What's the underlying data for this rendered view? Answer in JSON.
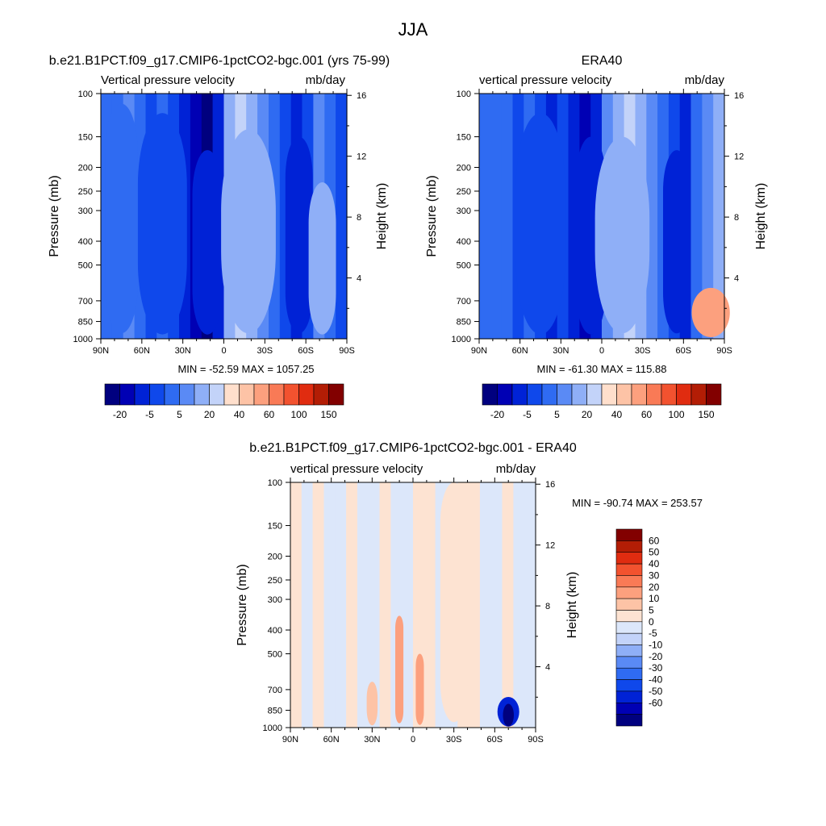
{
  "page": {
    "title": "JJA"
  },
  "colors": {
    "model_levels": [
      "#00007f",
      "#0000b4",
      "#0022d6",
      "#0f48eb",
      "#2f6bf2",
      "#5a8af5",
      "#8faff7",
      "#c3d3f9",
      "#ffdfcc",
      "#fdc3a6",
      "#fca07e",
      "#f97a56",
      "#f2522f",
      "#e02c10",
      "#b31d05",
      "#820000"
    ],
    "diff_levels": [
      "#00007f",
      "#0000b4",
      "#0022d6",
      "#0f48eb",
      "#2f6bf2",
      "#5a8af5",
      "#8faff7",
      "#c3d3f9",
      "#dce7fa",
      "#fde3d2",
      "#fdc3a6",
      "#fca07e",
      "#f97a56",
      "#f2522f",
      "#e02c10",
      "#b31d05",
      "#820000"
    ]
  },
  "chart_data": [
    {
      "type": "heatmap",
      "title": "b.e21.B1PCT.f09_g17.CMIP6-1pctCO2-bgc.001 (yrs 75-99)",
      "subtitle_left": "Vertical pressure velocity",
      "subtitle_right": "mb/day",
      "ylabel": "Pressure (mb)",
      "ylabel_right": "Height (km)",
      "x_ticks": [
        "90N",
        "60N",
        "30N",
        "0",
        "30S",
        "60S",
        "90S"
      ],
      "x_tick_values": [
        90,
        60,
        30,
        0,
        -30,
        -60,
        -90
      ],
      "y_ticks": [
        "100",
        "150",
        "200",
        "250",
        "300",
        "400",
        "500",
        "700",
        "850",
        "1000"
      ],
      "y_tick_values": [
        100,
        150,
        200,
        250,
        300,
        400,
        500,
        700,
        850,
        1000
      ],
      "y_right_ticks": [
        "16",
        "12",
        "8",
        "4"
      ],
      "y_right_values": [
        16,
        12,
        8,
        4
      ],
      "ylim": [
        1000,
        100
      ],
      "xlim": [
        90,
        -90
      ],
      "stats": "MIN = -52.59  MAX = 1057.25",
      "colorbar_labels": [
        "-20",
        "-5",
        "5",
        "20",
        "40",
        "60",
        "100",
        "150"
      ],
      "features": [
        {
          "lat": 12,
          "p": 600,
          "level": 0,
          "lat_w": 6,
          "p_top": 210
        },
        {
          "lat": 12,
          "p": 600,
          "level": 2,
          "lat_w": 11,
          "p_top": 170
        },
        {
          "lat": -18,
          "p": 500,
          "level": 7,
          "lat_w": 12,
          "p_top": 200
        },
        {
          "lat": -18,
          "p": 500,
          "level": 6,
          "lat_w": 20,
          "p_top": 140
        },
        {
          "lat": -55,
          "p": 500,
          "level": 2,
          "lat_w": 10,
          "p_top": 150
        },
        {
          "lat": -72,
          "p": 600,
          "level": 6,
          "lat_w": 10,
          "p_top": 230
        },
        {
          "lat": 45,
          "p": 600,
          "level": 3,
          "lat_w": 18,
          "p_top": 120
        },
        {
          "lat": 75,
          "p": 500,
          "level": 4,
          "lat_w": 12,
          "p_top": 110
        }
      ]
    },
    {
      "type": "heatmap",
      "title": "ERA40",
      "subtitle_left": "vertical pressure velocity",
      "subtitle_right": "mb/day",
      "ylabel": "Pressure (mb)",
      "ylabel_right": "Height (km)",
      "x_ticks": [
        "90N",
        "60N",
        "30N",
        "0",
        "30S",
        "60S",
        "90S"
      ],
      "x_tick_values": [
        90,
        60,
        30,
        0,
        -30,
        -60,
        -90
      ],
      "y_ticks": [
        "100",
        "150",
        "200",
        "250",
        "300",
        "400",
        "500",
        "700",
        "850",
        "1000"
      ],
      "y_tick_values": [
        100,
        150,
        200,
        250,
        300,
        400,
        500,
        700,
        850,
        1000
      ],
      "y_right_ticks": [
        "16",
        "12",
        "8",
        "4"
      ],
      "y_right_values": [
        16,
        12,
        8,
        4
      ],
      "ylim": [
        1000,
        100
      ],
      "xlim": [
        90,
        -90
      ],
      "stats": "MIN = -61.30  MAX = 115.88",
      "colorbar_labels": [
        "-20",
        "-5",
        "5",
        "20",
        "40",
        "60",
        "100",
        "150"
      ],
      "features": [
        {
          "lat": 8,
          "p": 600,
          "level": 0,
          "lat_w": 6,
          "p_top": 200
        },
        {
          "lat": 8,
          "p": 600,
          "level": 2,
          "lat_w": 11,
          "p_top": 150
        },
        {
          "lat": -15,
          "p": 500,
          "level": 7,
          "lat_w": 12,
          "p_top": 220
        },
        {
          "lat": -15,
          "p": 500,
          "level": 6,
          "lat_w": 20,
          "p_top": 150
        },
        {
          "lat": -55,
          "p": 500,
          "level": 2,
          "lat_w": 10,
          "p_top": 170
        },
        {
          "lat": -80,
          "p": 850,
          "level": 12,
          "lat_w": 10,
          "p_top": 680
        },
        {
          "lat": -80,
          "p": 850,
          "level": 10,
          "lat_w": 14,
          "p_top": 620
        },
        {
          "lat": 45,
          "p": 600,
          "level": 3,
          "lat_w": 18,
          "p_top": 120
        }
      ]
    },
    {
      "type": "heatmap",
      "title": "b.e21.B1PCT.f09_g17.CMIP6-1pctCO2-bgc.001 - ERA40",
      "subtitle_left": "vertical pressure velocity",
      "subtitle_right": "mb/day",
      "ylabel": "Pressure (mb)",
      "ylabel_right": "Height (km)",
      "x_ticks": [
        "90N",
        "60N",
        "30N",
        "0",
        "30S",
        "60S",
        "90S"
      ],
      "x_tick_values": [
        90,
        60,
        30,
        0,
        -30,
        -60,
        -90
      ],
      "y_ticks": [
        "100",
        "150",
        "200",
        "250",
        "300",
        "400",
        "500",
        "700",
        "850",
        "1000"
      ],
      "y_tick_values": [
        100,
        150,
        200,
        250,
        300,
        400,
        500,
        700,
        850,
        1000
      ],
      "y_right_ticks": [
        "16",
        "12",
        "8",
        "4"
      ],
      "y_right_values": [
        16,
        12,
        8,
        4
      ],
      "ylim": [
        1000,
        100
      ],
      "xlim": [
        90,
        -90
      ],
      "stats": "MIN = -90.74  MAX = 253.57",
      "colorbar_labels": [
        "60",
        "50",
        "40",
        "30",
        "20",
        "10",
        "5",
        "0",
        "-5",
        "-10",
        "-20",
        "-30",
        "-40",
        "-50",
        "-60"
      ],
      "features": [
        {
          "lat": 10,
          "p": 600,
          "level": 11,
          "lat_w": 3,
          "p_top": 350
        },
        {
          "lat": -5,
          "p": 750,
          "level": 11,
          "lat_w": 3,
          "p_top": 500
        },
        {
          "lat": -70,
          "p": 900,
          "level": 2,
          "lat_w": 8,
          "p_top": 750
        },
        {
          "lat": -70,
          "p": 900,
          "level": 0,
          "lat_w": 4,
          "p_top": 800
        },
        {
          "lat": 30,
          "p": 800,
          "level": 10,
          "lat_w": 4,
          "p_top": 650
        },
        {
          "lat": -30,
          "p": 500,
          "level": 9,
          "lat_w": 10,
          "p_top": 100
        }
      ]
    }
  ]
}
